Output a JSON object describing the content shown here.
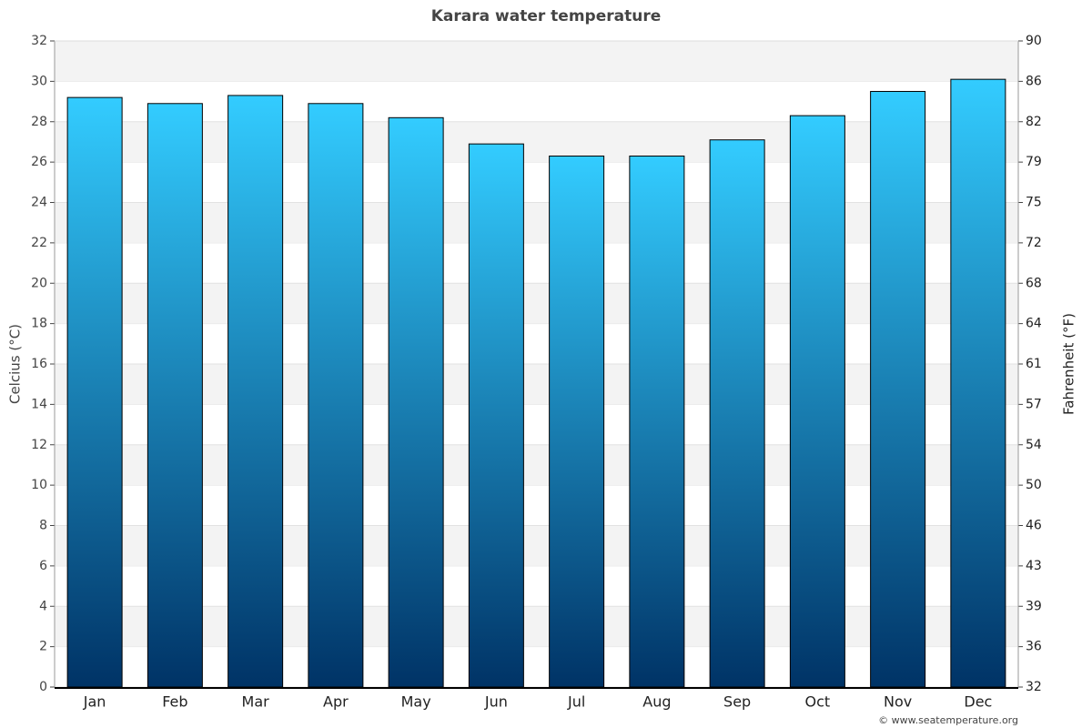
{
  "chart_data": {
    "type": "bar",
    "title": "Karara water temperature",
    "ylabel": "Celcius (°C)",
    "y2label": "Fahrenheit (°F)",
    "categories": [
      "Jan",
      "Feb",
      "Mar",
      "Apr",
      "May",
      "Jun",
      "Jul",
      "Aug",
      "Sep",
      "Oct",
      "Nov",
      "Dec"
    ],
    "values": [
      29.2,
      28.9,
      29.3,
      28.9,
      28.2,
      26.9,
      26.3,
      26.3,
      27.1,
      28.3,
      29.5,
      30.1
    ],
    "color": [
      "#33ccff",
      "#003366"
    ],
    "ylim": [
      0,
      32
    ],
    "yticks": [
      0,
      2,
      4,
      6,
      8,
      10,
      12,
      14,
      16,
      18,
      20,
      22,
      24,
      26,
      28,
      30,
      32
    ],
    "y2lim": [
      32,
      89.6
    ],
    "y2ticks": [
      32,
      {
        "value": 35.6,
        "label": "36"
      },
      {
        "value": 39.2,
        "label": "39"
      },
      {
        "value": 42.8,
        "label": "43"
      },
      {
        "value": 46.4,
        "label": "46"
      },
      50,
      {
        "value": 53.6,
        "label": "54"
      },
      {
        "value": 57.2,
        "label": "57"
      },
      {
        "value": 60.8,
        "label": "61"
      },
      {
        "value": 64.4,
        "label": "64"
      },
      68,
      {
        "value": 71.6,
        "label": "72"
      },
      {
        "value": 75.2,
        "label": "75"
      },
      {
        "value": 78.8,
        "label": "79"
      },
      {
        "value": 82.4,
        "label": "82"
      },
      86,
      {
        "value": 89.6,
        "label": "90"
      }
    ],
    "grid": true,
    "credit": "© www.seatemperature.org"
  }
}
